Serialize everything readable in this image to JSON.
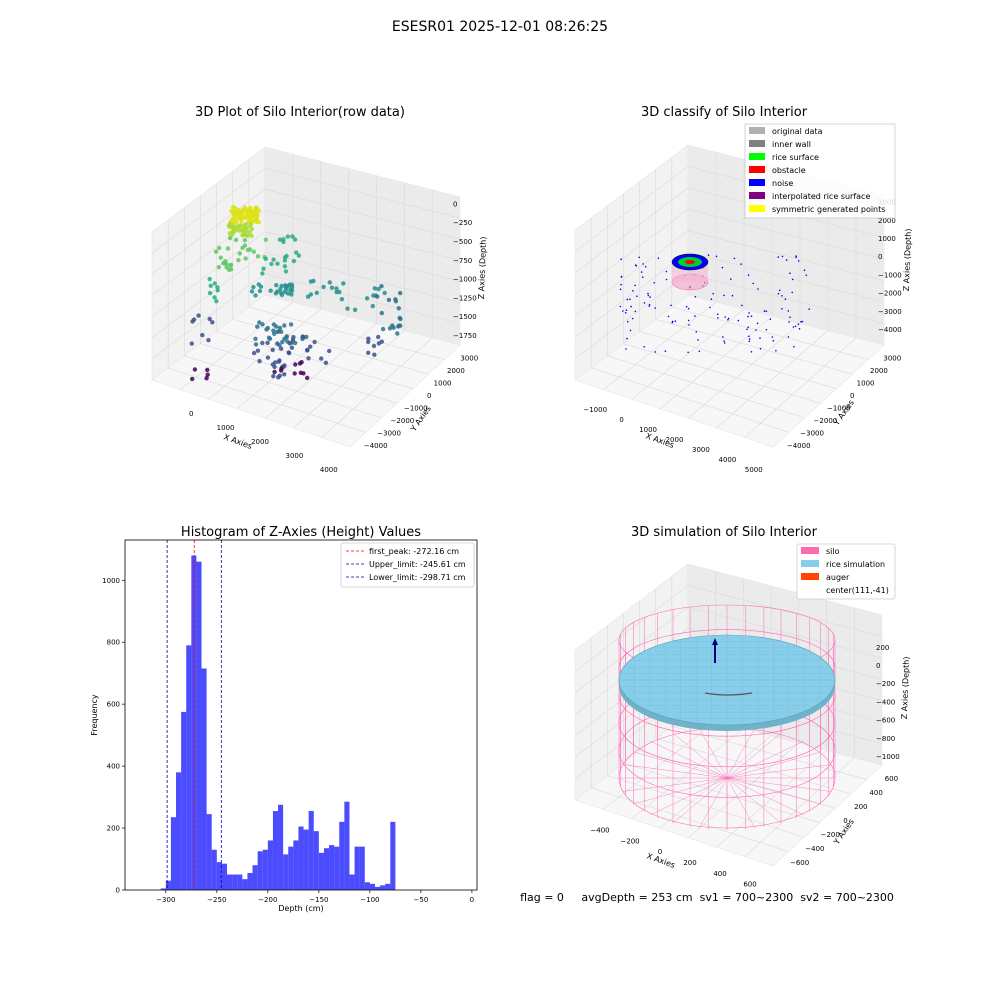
{
  "suptitle": "ESESR01 2025-12-01 08:26:25",
  "footer": "flag = 0     avgDepth = 253 cm  sv1 = 700~2300  sv2 = 700~2300",
  "chart_data": [
    {
      "type": "scatter",
      "title": "3D Plot of Silo Interior(row data)",
      "xlabel": "X Axies",
      "ylabel": "Y Axies",
      "zlabel": "Z Axies (Depth)",
      "x_ticks": [
        "0",
        "1000",
        "2000",
        "3000",
        "4000"
      ],
      "y_ticks": [
        "−4000",
        "−3000",
        "−2000",
        "−1000",
        "0",
        "1000",
        "2000",
        "3000"
      ],
      "z_ticks": [
        "−1750",
        "−1500",
        "−1250",
        "−1000",
        "−750",
        "−500",
        "−250",
        "0"
      ],
      "colormap": "viridis"
    },
    {
      "type": "scatter",
      "title": "3D classify of Silo Interior",
      "xlabel": "X Axies",
      "ylabel": "Y Axies",
      "zlabel": "Z Axies (Depth)",
      "x_ticks": [
        "−1000",
        "0",
        "1000",
        "2000",
        "3000",
        "4000",
        "5000"
      ],
      "y_ticks": [
        "−4000",
        "−3000",
        "−2000",
        "−1000",
        "0",
        "1000",
        "2000",
        "3000"
      ],
      "z_ticks": [
        "−4000",
        "−3000",
        "−2000",
        "−1000",
        "0",
        "1000",
        "2000",
        "3000"
      ],
      "legend": [
        {
          "label": "original data",
          "color": "#b0b0b0"
        },
        {
          "label": "inner wall",
          "color": "#808080"
        },
        {
          "label": "rice surface",
          "color": "#00ff00"
        },
        {
          "label": "obstacle",
          "color": "#ff0000"
        },
        {
          "label": "noise",
          "color": "#0000ff"
        },
        {
          "label": "interpolated rice surface",
          "color": "#800080"
        },
        {
          "label": "symmetric generated points",
          "color": "#ffff00"
        }
      ],
      "legend_loc": "upper right"
    },
    {
      "type": "bar",
      "title": "Histogram of Z-Axies (Height) Values",
      "xlabel": "Depth (cm)",
      "ylabel": "Frequency",
      "xlim": [
        -340,
        5
      ],
      "ylim": [
        0,
        1130
      ],
      "x_ticks": [
        -300,
        -250,
        -200,
        -150,
        -100,
        -50,
        0
      ],
      "y_ticks": [
        0,
        200,
        400,
        600,
        800,
        1000
      ],
      "bin_width": 5,
      "bins_start": [
        -305,
        -300,
        -295,
        -290,
        -285,
        -280,
        -275,
        -270,
        -265,
        -260,
        -255,
        -250,
        -245,
        -240,
        -235,
        -230,
        -225,
        -220,
        -215,
        -210,
        -205,
        -200,
        -195,
        -190,
        -185,
        -180,
        -175,
        -170,
        -165,
        -160,
        -155,
        -150,
        -145,
        -140,
        -135,
        -130,
        -125,
        -120,
        -115,
        -110,
        -105,
        -100,
        -95,
        -90,
        -85,
        -80,
        -75,
        -70,
        -65,
        -60,
        -55,
        -50,
        -45,
        -40,
        -35,
        -30,
        -25,
        -20,
        -15,
        -10,
        -5
      ],
      "counts": [
        5,
        30,
        235,
        380,
        575,
        790,
        1080,
        1060,
        715,
        245,
        130,
        90,
        85,
        50,
        50,
        50,
        35,
        55,
        80,
        125,
        130,
        160,
        255,
        275,
        115,
        140,
        160,
        205,
        195,
        255,
        190,
        120,
        135,
        145,
        140,
        220,
        285,
        50,
        140,
        140,
        25,
        20,
        10,
        15,
        20,
        220,
        0,
        0,
        0,
        0,
        0,
        0,
        0,
        0,
        0,
        0,
        0,
        0,
        0,
        0,
        0
      ],
      "bar_color": "#0000ff",
      "vlines": [
        {
          "label": "first_peak: -272.16 cm",
          "x": -272.16,
          "color": "#ff0000"
        },
        {
          "label": "Upper_limit: -245.61 cm",
          "x": -245.61,
          "color": "#0000aa"
        },
        {
          "label": "Lower_limit: -298.71 cm",
          "x": -298.71,
          "color": "#0000aa"
        }
      ],
      "legend_loc": "upper right"
    },
    {
      "type": "surface",
      "title": "3D simulation of Silo Interior",
      "xlabel": "X Axies",
      "ylabel": "Y Axies",
      "zlabel": "Z Axies (Depth)",
      "x_ticks": [
        "−400",
        "−200",
        "0",
        "200",
        "400",
        "600"
      ],
      "y_ticks": [
        "−600",
        "−400",
        "−200",
        "0",
        "200",
        "400",
        "600"
      ],
      "z_ticks": [
        "−1000",
        "−800",
        "−600",
        "−400",
        "−200",
        "0",
        "200"
      ],
      "legend": [
        {
          "label": "silo",
          "color": "#ff69b4"
        },
        {
          "label": "rice simulation",
          "color": "#87ceeb"
        },
        {
          "label": "auger",
          "color": "#ff4500"
        },
        {
          "label": "center(111,-41)",
          "color": ""
        }
      ],
      "legend_loc": "upper right"
    }
  ]
}
